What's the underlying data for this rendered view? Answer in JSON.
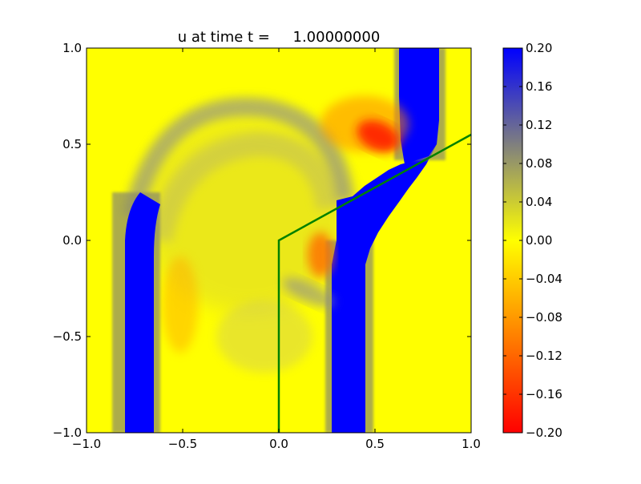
{
  "chart_data": {
    "type": "heatmap",
    "title": "u at time t =     1.00000000",
    "xlim": [
      -1.0,
      1.0
    ],
    "ylim": [
      -1.0,
      1.0
    ],
    "x_ticks": [
      -1.0,
      -0.5,
      0.0,
      0.5,
      1.0
    ],
    "x_tick_labels": [
      "−1.0",
      "−0.5",
      "0.0",
      "0.5",
      "1.0"
    ],
    "y_ticks": [
      -1.0,
      -0.5,
      0.0,
      0.5,
      1.0
    ],
    "y_tick_labels": [
      "−1.0",
      "−0.5",
      "0.0",
      "0.5",
      "1.0"
    ],
    "colorbar": {
      "min": -0.2,
      "max": 0.2,
      "ticks": [
        0.2,
        0.16,
        0.12,
        0.08,
        0.04,
        0.0,
        -0.04,
        -0.08,
        -0.12,
        -0.16,
        -0.2
      ],
      "tick_labels": [
        "0.20",
        "0.16",
        "0.12",
        "0.08",
        "0.04",
        "0.00",
        "−0.04",
        "−0.08",
        "−0.12",
        "−0.16",
        "−0.20"
      ],
      "colors": [
        {
          "value": -0.2,
          "color": "#ff0000"
        },
        {
          "value": 0.0,
          "color": "#ffff00"
        },
        {
          "value": 0.1,
          "color": "#7f7f7f"
        },
        {
          "value": 0.2,
          "color": "#0000ff"
        }
      ]
    },
    "overlay_line": {
      "color": "#008000",
      "x": [
        0.0,
        0.0,
        1.0
      ],
      "y": [
        -1.0,
        0.0,
        0.55
      ]
    },
    "field_features": [
      {
        "name": "left-blue-band",
        "value": 0.2,
        "x_range": [
          -0.79,
          -0.65
        ],
        "y_range": [
          -1.0,
          0.1
        ]
      },
      {
        "name": "middle-blue-band",
        "value": 0.2,
        "x_range": [
          0.28,
          0.45
        ],
        "y_range": [
          -1.0,
          -0.15
        ]
      },
      {
        "name": "upper-blue-band",
        "value": 0.2,
        "x_range": [
          0.63,
          0.83
        ],
        "y_range": [
          0.45,
          1.0
        ]
      },
      {
        "name": "red-lobe",
        "value": -0.2,
        "center": [
          0.6,
          0.52
        ]
      },
      {
        "name": "orange-lobe",
        "value": -0.14,
        "center": [
          0.25,
          -0.1
        ]
      }
    ]
  }
}
